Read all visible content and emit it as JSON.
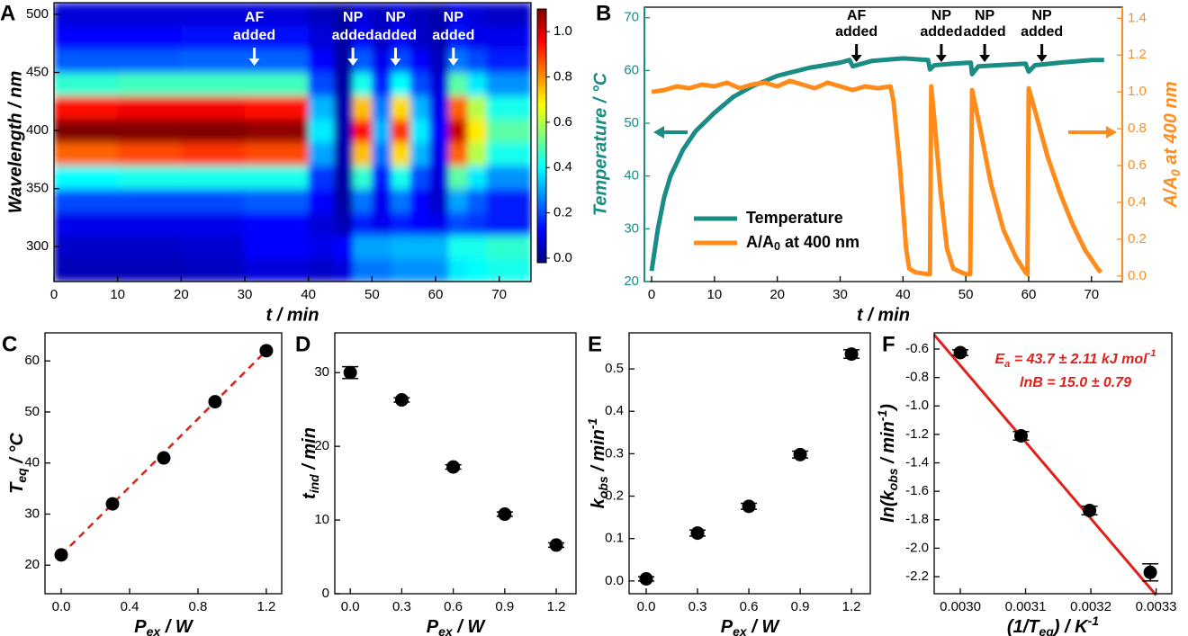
{
  "chart_data": [
    {
      "type": "heatmap",
      "label": "A",
      "xlabel": "t / min",
      "ylabel": "Wavelength / nm",
      "x_bins": [
        0,
        10,
        20,
        30,
        40,
        44,
        47,
        50,
        53,
        56,
        59,
        62,
        65,
        68,
        75
      ],
      "y_bins": [
        270,
        290,
        310,
        330,
        350,
        370,
        390,
        410,
        430,
        450,
        470,
        490,
        510
      ],
      "z": [
        [
          0.04,
          0.06,
          0.1,
          0.2,
          0.4,
          0.85,
          1.1,
          0.95,
          0.45,
          0.22,
          0.12,
          0.08
        ],
        [
          0.04,
          0.06,
          0.1,
          0.2,
          0.42,
          0.88,
          1.1,
          0.97,
          0.47,
          0.22,
          0.12,
          0.08
        ],
        [
          0.05,
          0.07,
          0.1,
          0.2,
          0.42,
          0.9,
          1.1,
          0.97,
          0.47,
          0.23,
          0.13,
          0.08
        ],
        [
          0.08,
          0.12,
          0.12,
          0.22,
          0.42,
          0.88,
          1.08,
          0.95,
          0.47,
          0.23,
          0.13,
          0.08
        ],
        [
          0.06,
          0.1,
          0.08,
          0.12,
          0.18,
          0.3,
          0.38,
          0.32,
          0.2,
          0.12,
          0.08,
          0.05
        ],
        [
          0.08,
          0.12,
          0.04,
          0.02,
          0.02,
          0.03,
          0.03,
          0.03,
          0.02,
          0.02,
          0.02,
          0.02
        ],
        [
          0.25,
          0.3,
          0.15,
          0.25,
          0.45,
          0.75,
          0.95,
          0.75,
          0.42,
          0.22,
          0.12,
          0.08
        ],
        [
          0.25,
          0.3,
          0.1,
          0.1,
          0.15,
          0.25,
          0.32,
          0.26,
          0.16,
          0.1,
          0.06,
          0.05
        ],
        [
          0.28,
          0.32,
          0.15,
          0.25,
          0.42,
          0.72,
          0.9,
          0.72,
          0.4,
          0.2,
          0.12,
          0.08
        ],
        [
          0.28,
          0.32,
          0.12,
          0.12,
          0.2,
          0.32,
          0.38,
          0.32,
          0.2,
          0.12,
          0.06,
          0.05
        ],
        [
          0.28,
          0.32,
          0.1,
          0.06,
          0.08,
          0.1,
          0.12,
          0.1,
          0.08,
          0.05,
          0.03,
          0.03
        ],
        [
          0.38,
          0.42,
          0.2,
          0.3,
          0.5,
          0.85,
          1.02,
          0.85,
          0.5,
          0.25,
          0.14,
          0.1
        ],
        [
          0.4,
          0.42,
          0.18,
          0.22,
          0.38,
          0.6,
          0.7,
          0.6,
          0.38,
          0.2,
          0.1,
          0.08
        ],
        [
          0.42,
          0.45,
          0.15,
          0.15,
          0.28,
          0.42,
          0.5,
          0.42,
          0.28,
          0.15,
          0.1,
          0.06
        ]
      ],
      "xlim": [
        0,
        75
      ],
      "ylim": [
        270,
        510
      ],
      "xticks": [
        0,
        10,
        20,
        30,
        40,
        50,
        60,
        70
      ],
      "yticks": [
        300,
        350,
        400,
        450,
        500
      ],
      "clim": [
        -0.02,
        1.1
      ],
      "cticks": [
        {
          "value": 0,
          "label": "0.0"
        },
        0.2,
        0.4,
        0.6,
        0.8,
        {
          "value": 1,
          "label": "1.0"
        }
      ],
      "colormap": [
        "#00007f",
        "#0000ff",
        "#007fff",
        "#00ffff",
        "#7fff7f",
        "#ffff00",
        "#ff7f00",
        "#ff0000",
        "#7f0000"
      ],
      "annotation_color": "#ffffff",
      "annotations": [
        {
          "text": [
            "AF",
            "added"
          ],
          "x": 31.5
        },
        {
          "text": [
            "NP",
            "added"
          ],
          "x": 47
        },
        {
          "text": [
            "NP",
            "added"
          ],
          "x": 53.7
        },
        {
          "text": [
            "NP",
            "added"
          ],
          "x": 62.8
        }
      ]
    },
    {
      "type": "line",
      "label": "B",
      "xlabel": "t / min",
      "ylabel": "Temperature / °C",
      "y2label": [
        {
          "t": "A/A"
        },
        {
          "t": "0",
          "s": "sub"
        },
        {
          "t": " at 400 nm"
        }
      ],
      "xlim": [
        -1.15,
        74.9
      ],
      "ylim": [
        20,
        72
      ],
      "y2lim": [
        -0.03,
        1.46
      ],
      "xticks": [
        0,
        10,
        20,
        30,
        40,
        50,
        60,
        70
      ],
      "yticks": [
        20,
        30,
        40,
        50,
        60,
        70
      ],
      "y2ticks": [
        {
          "value": 0,
          "label": "0.0"
        },
        0.2,
        0.4,
        0.6,
        0.8,
        {
          "value": 1,
          "label": "1.0"
        },
        1.2,
        1.4
      ],
      "legend": "lower left",
      "annotation_color": "#000000",
      "annotations": [
        {
          "text": [
            "AF",
            "added"
          ],
          "x": 32.6
        },
        {
          "text": [
            "NP",
            "added"
          ],
          "x": 46.1
        },
        {
          "text": [
            "NP",
            "added"
          ],
          "x": 53
        },
        {
          "text": [
            "NP",
            "added"
          ],
          "x": 62.1
        }
      ],
      "series": [
        {
          "name": [
            {
              "t": "Temperature"
            }
          ],
          "color": "#1a8c86",
          "x": [
            0,
            1,
            2,
            3,
            5,
            7,
            10,
            13,
            16,
            20,
            25,
            30,
            31.5,
            32,
            35,
            40,
            44,
            44.3,
            45,
            48,
            50.8,
            51,
            52,
            55,
            59.5,
            60,
            61,
            65,
            70,
            72
          ],
          "values": [
            22,
            30,
            36,
            40,
            45,
            48.5,
            52,
            55,
            57,
            59,
            60.5,
            61.5,
            62,
            60.8,
            61.8,
            62.3,
            62,
            60.2,
            61,
            61.3,
            61.5,
            59.3,
            60.8,
            61,
            61.3,
            59.8,
            61,
            61.5,
            62,
            62
          ]
        },
        {
          "name": [
            {
              "t": "A/A"
            },
            {
              "t": "0",
              "s": "sub"
            },
            {
              "t": " at 400 nm"
            }
          ],
          "color": "#ff8c1a",
          "axis": "y2",
          "x": [
            0,
            2,
            4,
            6,
            8,
            10,
            12,
            14,
            16,
            18,
            20,
            22,
            24,
            26,
            28,
            30,
            32,
            34,
            36,
            38,
            38.5,
            39.5,
            40.5,
            41,
            42,
            44,
            44.3,
            44.5,
            45,
            46,
            47,
            48,
            50,
            50.7,
            51,
            52,
            54,
            56,
            58,
            59.5,
            59.8,
            60,
            61,
            63,
            65,
            67,
            69,
            71,
            71.5
          ],
          "values": [
            1.0,
            1.01,
            1.03,
            1.02,
            1.04,
            1.03,
            1.05,
            1.02,
            1.04,
            1.05,
            1.03,
            1.06,
            1.04,
            1.02,
            1.05,
            1.03,
            1.01,
            1.03,
            1.02,
            1.03,
            0.95,
            0.6,
            0.15,
            0.04,
            0.02,
            0.01,
            0.01,
            1.03,
            0.85,
            0.45,
            0.15,
            0.04,
            0.01,
            0.01,
            1.01,
            0.85,
            0.5,
            0.25,
            0.1,
            0.02,
            0.01,
            1.02,
            0.9,
            0.65,
            0.45,
            0.28,
            0.14,
            0.04,
            0.02
          ]
        }
      ]
    },
    {
      "type": "scatter",
      "label": "C",
      "xlabel": [
        {
          "t": "P"
        },
        {
          "t": "ex",
          "s": "sub"
        },
        {
          "t": " / W"
        }
      ],
      "ylabel": [
        {
          "t": "T"
        },
        {
          "t": "eq",
          "s": "sub"
        },
        {
          "t": " / °C"
        }
      ],
      "x": [
        0,
        0.3,
        0.6,
        0.9,
        1.2
      ],
      "values": [
        22,
        32,
        41,
        52,
        62
      ],
      "color": "#000000",
      "fit": {
        "x": [
          0,
          1.2
        ],
        "y": [
          22,
          62
        ],
        "color": "#e0201b",
        "dash": true
      },
      "xlim": [
        -0.095,
        1.29
      ],
      "ylim": [
        14.4,
        65.5
      ],
      "xticks": [
        {
          "value": 0,
          "label": "0.0"
        },
        0.4,
        0.8,
        1.2
      ],
      "yticks": [
        20,
        30,
        40,
        50,
        60
      ]
    },
    {
      "type": "scatter",
      "label": "D",
      "xlabel": [
        {
          "t": "P"
        },
        {
          "t": "ex",
          "s": "sub"
        },
        {
          "t": " / W"
        }
      ],
      "ylabel": [
        {
          "t": "t"
        },
        {
          "t": "ind",
          "s": "sub"
        },
        {
          "t": " / min"
        }
      ],
      "x": [
        0,
        0.3,
        0.6,
        0.9,
        1.2
      ],
      "values": [
        30,
        26.3,
        17.2,
        10.8,
        6.6
      ],
      "errors": [
        0.8,
        0.3,
        0.3,
        0.3,
        0.3
      ],
      "color": "#000000",
      "xlim": [
        -0.09,
        1.315
      ],
      "ylim": [
        0,
        35.4
      ],
      "xticks": [
        {
          "value": 0,
          "label": "0.0"
        },
        0.3,
        0.6,
        0.9,
        1.2
      ],
      "yticks": [
        0,
        10,
        20,
        30
      ]
    },
    {
      "type": "scatter",
      "label": "E",
      "xlabel": [
        {
          "t": "P"
        },
        {
          "t": "ex",
          "s": "sub"
        },
        {
          "t": " / W"
        }
      ],
      "ylabel": [
        {
          "t": "k"
        },
        {
          "t": "obs",
          "s": "sub"
        },
        {
          "t": " / min"
        },
        {
          "t": "-1",
          "s": "sup"
        }
      ],
      "x": [
        0,
        0.3,
        0.6,
        0.9,
        1.2
      ],
      "values": [
        0.005,
        0.113,
        0.176,
        0.298,
        0.535
      ],
      "errors": [
        0.005,
        0.007,
        0.007,
        0.008,
        0.01
      ],
      "color": "#000000",
      "xlim": [
        -0.1,
        1.31
      ],
      "ylim": [
        -0.03,
        0.585
      ],
      "xticks": [
        {
          "value": 0,
          "label": "0.0"
        },
        0.3,
        0.6,
        0.9,
        1.2
      ],
      "yticks": [
        {
          "value": 0,
          "label": "0.0"
        },
        0.1,
        0.2,
        0.3,
        0.4,
        0.5
      ]
    },
    {
      "type": "scatter",
      "label": "F",
      "xlabel": [
        {
          "t": "(1/T"
        },
        {
          "t": "eq",
          "s": "sub"
        },
        {
          "t": ") / K"
        },
        {
          "t": "-1",
          "s": "sup"
        }
      ],
      "ylabel": [
        {
          "t": "ln(k"
        },
        {
          "t": "obs",
          "s": "sub"
        },
        {
          "t": " / min"
        },
        {
          "t": "-1",
          "s": "sup"
        },
        {
          "t": ")"
        }
      ],
      "x": [
        0.003,
        0.003093,
        0.003198,
        0.003291
      ],
      "values": [
        -0.625,
        -1.21,
        -1.735,
        -2.17
      ],
      "errors": [
        0.02,
        0.03,
        0.03,
        0.06
      ],
      "color": "#000000",
      "fit": {
        "x": [
          0.00296,
          0.0033
        ],
        "y": [
          -0.5,
          -2.33
        ],
        "color": "#e0201b",
        "dash": false
      },
      "note_color": "#e0201b",
      "notes": [
        [
          {
            "t": "E"
          },
          {
            "t": "a",
            "s": "sub"
          },
          {
            "t": " = 43.7 ± 2.11 kJ mol"
          },
          {
            "t": "-1",
            "s": "sup"
          }
        ],
        [
          {
            "t": "lnB = 15.0 ± 0.79"
          }
        ]
      ],
      "xlim": [
        0.00296,
        0.003324
      ],
      "ylim": [
        -2.32,
        -0.486
      ],
      "xticks": [
        {
          "value": 0.003,
          "label": "0.0030"
        },
        0.0031,
        0.0032,
        0.0033
      ],
      "yticks": [
        -0.6,
        -0.8,
        {
          "value": -1,
          "label": "-1.0"
        },
        -1.2,
        -1.4,
        -1.6,
        -1.8,
        {
          "value": -2,
          "label": "-2.0"
        },
        -2.2
      ]
    }
  ]
}
